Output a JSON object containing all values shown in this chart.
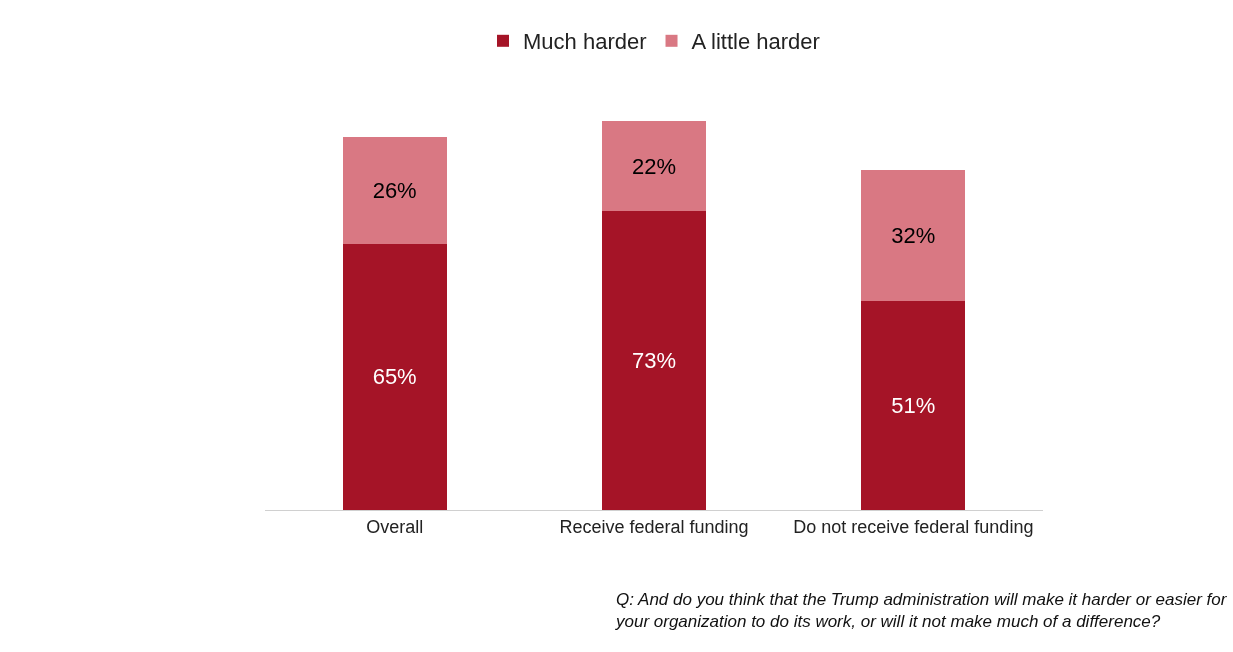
{
  "chart_data": {
    "type": "bar",
    "stacked": true,
    "legend": "top",
    "categories": [
      "Overall",
      "Receive federal funding",
      "Do not receive federal funding"
    ],
    "series": [
      {
        "name": "Much harder",
        "color": "#a51427",
        "values": [
          65,
          73,
          51
        ],
        "value_labels": [
          "65%",
          "73%",
          "51%"
        ]
      },
      {
        "name": "A little harder",
        "color": "#d97883",
        "values": [
          26,
          22,
          32
        ],
        "value_labels": [
          "26%",
          "22%",
          "32%"
        ]
      }
    ],
    "annotations": [
      "Q: And do you think that the Trump administration will make it harder or easier for\nyour organization to do its work, or will it not make much of a difference?"
    ]
  }
}
